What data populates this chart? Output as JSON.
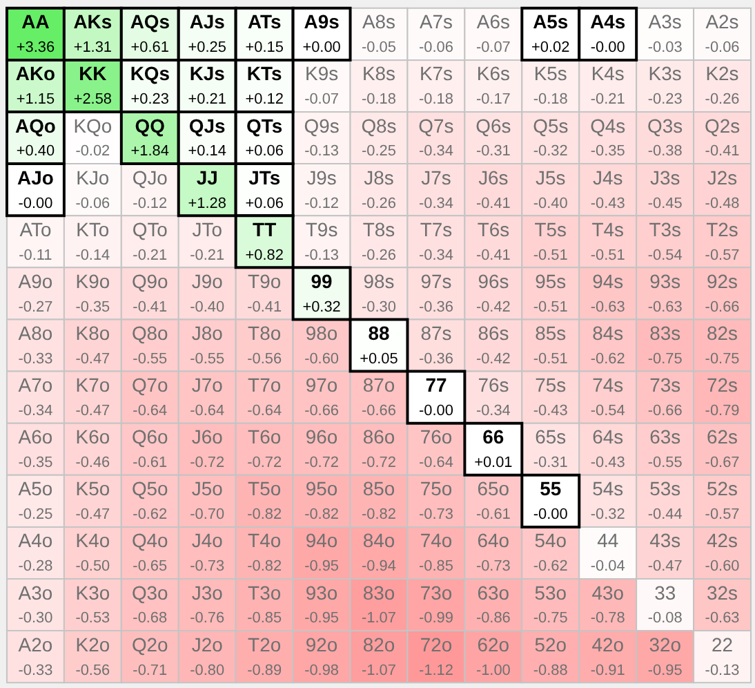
{
  "chart_data": {
    "type": "heatmap",
    "tick_labels": false,
    "cell_labels": [
      [
        "+3.36",
        "+1.31",
        "+0.61",
        "+0.25",
        "+0.15",
        "+0.00",
        "-0.05",
        "-0.06",
        "-0.07",
        "+0.02",
        "-0.00",
        "-0.03",
        "-0.06"
      ],
      [
        "+1.15",
        "+2.58",
        "+0.23",
        "+0.21",
        "+0.12",
        "-0.07",
        "-0.18",
        "-0.18",
        "-0.17",
        "-0.18",
        "-0.21",
        "-0.23",
        "-0.26"
      ],
      [
        "+0.40",
        "-0.02",
        "+1.84",
        "+0.14",
        "+0.06",
        "-0.13",
        "-0.25",
        "-0.34",
        "-0.31",
        "-0.32",
        "-0.35",
        "-0.38",
        "-0.41"
      ],
      [
        "-0.00",
        "-0.06",
        "-0.12",
        "+1.28",
        "+0.06",
        "-0.12",
        "-0.26",
        "-0.34",
        "-0.41",
        "-0.40",
        "-0.43",
        "-0.45",
        "-0.48"
      ],
      [
        "-0.11",
        "-0.14",
        "-0.21",
        "-0.21",
        "+0.82",
        "-0.13",
        "-0.26",
        "-0.34",
        "-0.41",
        "-0.51",
        "-0.51",
        "-0.54",
        "-0.57"
      ],
      [
        "-0.27",
        "-0.35",
        "-0.41",
        "-0.40",
        "-0.41",
        "+0.32",
        "-0.30",
        "-0.36",
        "-0.42",
        "-0.51",
        "-0.63",
        "-0.63",
        "-0.66"
      ],
      [
        "-0.33",
        "-0.47",
        "-0.55",
        "-0.55",
        "-0.56",
        "-0.60",
        "+0.05",
        "-0.36",
        "-0.42",
        "-0.51",
        "-0.62",
        "-0.75",
        "-0.75"
      ],
      [
        "-0.34",
        "-0.47",
        "-0.64",
        "-0.64",
        "-0.64",
        "-0.66",
        "-0.66",
        "-0.00",
        "-0.34",
        "-0.43",
        "-0.54",
        "-0.66",
        "-0.79"
      ],
      [
        "-0.35",
        "-0.46",
        "-0.61",
        "-0.72",
        "-0.72",
        "-0.72",
        "-0.72",
        "-0.64",
        "+0.01",
        "-0.31",
        "-0.43",
        "-0.55",
        "-0.67"
      ],
      [
        "-0.25",
        "-0.47",
        "-0.62",
        "-0.70",
        "-0.82",
        "-0.82",
        "-0.82",
        "-0.73",
        "-0.61",
        "-0.00",
        "-0.32",
        "-0.44",
        "-0.57"
      ],
      [
        "-0.28",
        "-0.50",
        "-0.65",
        "-0.73",
        "-0.82",
        "-0.95",
        "-0.94",
        "-0.85",
        "-0.73",
        "-0.62",
        "-0.04",
        "-0.47",
        "-0.60"
      ],
      [
        "-0.30",
        "-0.53",
        "-0.68",
        "-0.76",
        "-0.85",
        "-0.95",
        "-1.07",
        "-0.99",
        "-0.86",
        "-0.75",
        "-0.78",
        "-0.08",
        "-0.63"
      ],
      [
        "-0.33",
        "-0.56",
        "-0.71",
        "-0.80",
        "-0.89",
        "-0.98",
        "-1.07",
        "-1.12",
        "-1.00",
        "-0.88",
        "-0.91",
        "-0.95",
        "-0.13"
      ]
    ],
    "categories": [
      null,
      null,
      null,
      null,
      null,
      null,
      null,
      null,
      null,
      null,
      null,
      null,
      null
    ],
    "y_categories": [
      null,
      null,
      null,
      null,
      null,
      null,
      null,
      null,
      null,
      null,
      null,
      null,
      null
    ],
    "cells": [
      [
        3.36,
        1.31,
        0.61,
        0.25,
        0.15,
        0.0,
        -0.05,
        -0.06,
        -0.07,
        0.02,
        -0.0,
        -0.03,
        -0.06
      ],
      [
        1.15,
        2.58,
        0.23,
        0.21,
        0.12,
        -0.07,
        -0.18,
        -0.18,
        -0.17,
        -0.18,
        -0.21,
        -0.23,
        -0.26
      ],
      [
        0.4,
        -0.02,
        1.84,
        0.14,
        0.06,
        -0.13,
        -0.25,
        -0.34,
        -0.31,
        -0.32,
        -0.35,
        -0.38,
        -0.41
      ],
      [
        -0.0,
        -0.06,
        -0.12,
        1.28,
        0.06,
        -0.12,
        -0.26,
        -0.34,
        -0.41,
        -0.4,
        -0.43,
        -0.45,
        -0.48
      ],
      [
        -0.11,
        -0.14,
        -0.21,
        -0.21,
        0.82,
        -0.13,
        -0.26,
        -0.34,
        -0.41,
        -0.51,
        -0.51,
        -0.54,
        -0.57
      ],
      [
        -0.27,
        -0.35,
        -0.41,
        -0.4,
        -0.41,
        0.32,
        -0.3,
        -0.36,
        -0.42,
        -0.51,
        -0.63,
        -0.63,
        -0.66
      ],
      [
        -0.33,
        -0.47,
        -0.55,
        -0.55,
        -0.56,
        -0.6,
        0.05,
        -0.36,
        -0.42,
        -0.51,
        -0.62,
        -0.75,
        -0.75
      ],
      [
        -0.34,
        -0.47,
        -0.64,
        -0.64,
        -0.64,
        -0.66,
        -0.66,
        -0.0,
        -0.34,
        -0.43,
        -0.54,
        -0.66,
        -0.79
      ],
      [
        -0.35,
        -0.46,
        -0.61,
        -0.72,
        -0.72,
        -0.72,
        -0.72,
        -0.64,
        0.01,
        -0.31,
        -0.43,
        -0.55,
        -0.67
      ],
      [
        -0.25,
        -0.47,
        -0.62,
        -0.7,
        -0.82,
        -0.82,
        -0.82,
        -0.73,
        -0.61,
        -0.0,
        -0.32,
        -0.44,
        -0.57
      ],
      [
        -0.28,
        -0.5,
        -0.65,
        -0.73,
        -0.82,
        -0.95,
        -0.94,
        -0.85,
        -0.73,
        -0.62,
        -0.04,
        -0.47,
        -0.6
      ],
      [
        -0.3,
        -0.53,
        -0.68,
        -0.76,
        -0.85,
        -0.95,
        -1.07,
        -0.99,
        -0.86,
        -0.75,
        -0.78,
        -0.08,
        -0.63
      ],
      [
        -0.33,
        -0.56,
        -0.71,
        -0.8,
        -0.89,
        -0.98,
        -1.07,
        -1.12,
        -1.0,
        -0.88,
        -0.91,
        -0.95,
        -0.13
      ]
    ],
    "annotations": [
      "AA",
      "AKs",
      "AQs",
      "AJs",
      "ATs",
      "A9s",
      "A8s",
      "A7s",
      "A6s",
      "A5s",
      "A4s",
      "A3s",
      "A2s",
      "AKo",
      "KK",
      "KQs",
      "KJs",
      "KTs",
      "K9s",
      "K8s",
      "K7s",
      "K6s",
      "K5s",
      "K4s",
      "K3s",
      "K2s",
      "AQo",
      "KQo",
      "QQ",
      "QJs",
      "QTs",
      "Q9s",
      "Q8s",
      "Q7s",
      "Q6s",
      "Q5s",
      "Q4s",
      "Q3s",
      "Q2s",
      "AJo",
      "KJo",
      "QJo",
      "JJ",
      "JTs",
      "J9s",
      "J8s",
      "J7s",
      "J6s",
      "J5s",
      "J4s",
      "J3s",
      "J2s",
      "ATo",
      "KTo",
      "QTo",
      "JTo",
      "TT",
      "T9s",
      "T8s",
      "T7s",
      "T6s",
      "T5s",
      "T4s",
      "T3s",
      "T2s",
      "A9o",
      "K9o",
      "Q9o",
      "J9o",
      "T9o",
      "99",
      "98s",
      "97s",
      "96s",
      "95s",
      "94s",
      "93s",
      "92s",
      "A8o",
      "K8o",
      "Q8o",
      "J8o",
      "T8o",
      "98o",
      "88",
      "87s",
      "86s",
      "85s",
      "84s",
      "83s",
      "82s",
      "A7o",
      "K7o",
      "Q7o",
      "J7o",
      "T7o",
      "97o",
      "87o",
      "77",
      "76s",
      "75s",
      "74s",
      "73s",
      "72s",
      "A6o",
      "K6o",
      "Q6o",
      "J6o",
      "T6o",
      "96o",
      "86o",
      "76o",
      "66",
      "65s",
      "64s",
      "63s",
      "62s",
      "A5o",
      "K5o",
      "Q5o",
      "J5o",
      "T5o",
      "95o",
      "85o",
      "75o",
      "65o",
      "55",
      "54s",
      "53s",
      "52s",
      "A4o",
      "K4o",
      "Q4o",
      "J4o",
      "T4o",
      "94o",
      "84o",
      "74o",
      "64o",
      "54o",
      "44",
      "43s",
      "42s",
      "A3o",
      "K3o",
      "Q3o",
      "J3o",
      "T3o",
      "93o",
      "83o",
      "73o",
      "63o",
      "53o",
      "43o",
      "33",
      "32s",
      "A2o",
      "K2o",
      "Q2o",
      "J2o",
      "T2o",
      "92o",
      "82o",
      "72o",
      "62o",
      "52o",
      "42o",
      "32o",
      "22"
    ]
  }
}
